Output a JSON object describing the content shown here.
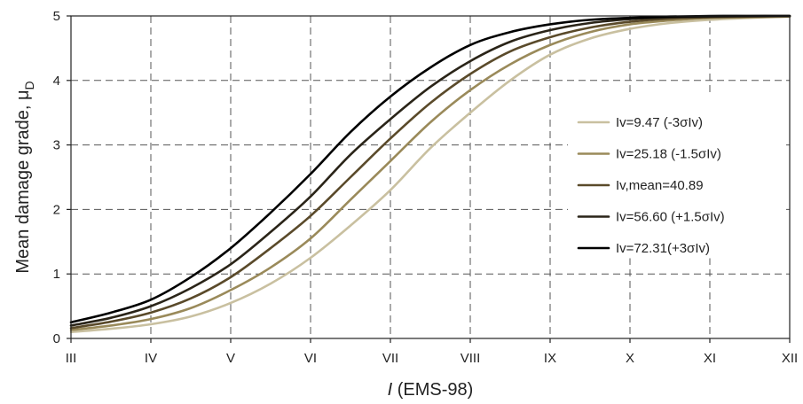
{
  "chart_data": {
    "type": "line",
    "xlabel_italic": "I",
    "xlabel_rest": " (EMS-98)",
    "ylabel": "Mean damage grade, μ",
    "ylabel_sub": "D",
    "xlim": [
      3,
      12
    ],
    "ylim": [
      0,
      5
    ],
    "x_ticks": [
      {
        "value": 3,
        "label": "III"
      },
      {
        "value": 4,
        "label": "IV"
      },
      {
        "value": 5,
        "label": "V"
      },
      {
        "value": 6,
        "label": "VI"
      },
      {
        "value": 7,
        "label": "VII"
      },
      {
        "value": 8,
        "label": "VIII"
      },
      {
        "value": 9,
        "label": "IX"
      },
      {
        "value": 10,
        "label": "X"
      },
      {
        "value": 11,
        "label": "XI"
      },
      {
        "value": 12,
        "label": "XII"
      }
    ],
    "y_ticks": [
      0,
      1,
      2,
      3,
      4,
      5
    ],
    "grid": true,
    "legend_position": "right",
    "x": [
      3,
      3.5,
      4,
      4.5,
      5,
      5.5,
      6,
      6.5,
      7,
      7.5,
      8,
      8.5,
      9,
      9.5,
      10,
      10.5,
      11,
      11.5,
      12
    ],
    "series": [
      {
        "name": "Iv=9.47 (-3σIv)",
        "color": "#c9c0a0",
        "values": [
          0.1,
          0.15,
          0.22,
          0.34,
          0.55,
          0.85,
          1.25,
          1.75,
          2.3,
          2.95,
          3.5,
          4.0,
          4.4,
          4.65,
          4.8,
          4.89,
          4.94,
          4.97,
          4.99
        ]
      },
      {
        "name": "Iv=25.18 (-1.5σIv)",
        "color": "#9a8a5a",
        "values": [
          0.13,
          0.2,
          0.3,
          0.47,
          0.75,
          1.1,
          1.55,
          2.15,
          2.75,
          3.35,
          3.85,
          4.25,
          4.55,
          4.75,
          4.87,
          4.93,
          4.97,
          4.98,
          4.99
        ]
      },
      {
        "name": "Iv,mean=40.89",
        "color": "#5a4a2a",
        "values": [
          0.16,
          0.26,
          0.4,
          0.62,
          0.95,
          1.4,
          1.9,
          2.5,
          3.1,
          3.65,
          4.1,
          4.45,
          4.67,
          4.82,
          4.91,
          4.96,
          4.98,
          4.99,
          5.0
        ]
      },
      {
        "name": "Iv=56.60 (+1.5σIv)",
        "color": "#2a2418",
        "values": [
          0.2,
          0.32,
          0.5,
          0.78,
          1.15,
          1.65,
          2.2,
          2.85,
          3.4,
          3.9,
          4.3,
          4.6,
          4.78,
          4.89,
          4.95,
          4.98,
          4.99,
          5.0,
          5.0
        ]
      },
      {
        "name": "Iv=72.31(+3σIv)",
        "color": "#000000",
        "values": [
          0.25,
          0.4,
          0.6,
          0.95,
          1.4,
          1.95,
          2.55,
          3.2,
          3.75,
          4.2,
          4.55,
          4.75,
          4.87,
          4.94,
          4.97,
          4.99,
          5.0,
          5.0,
          5.0
        ]
      }
    ]
  }
}
